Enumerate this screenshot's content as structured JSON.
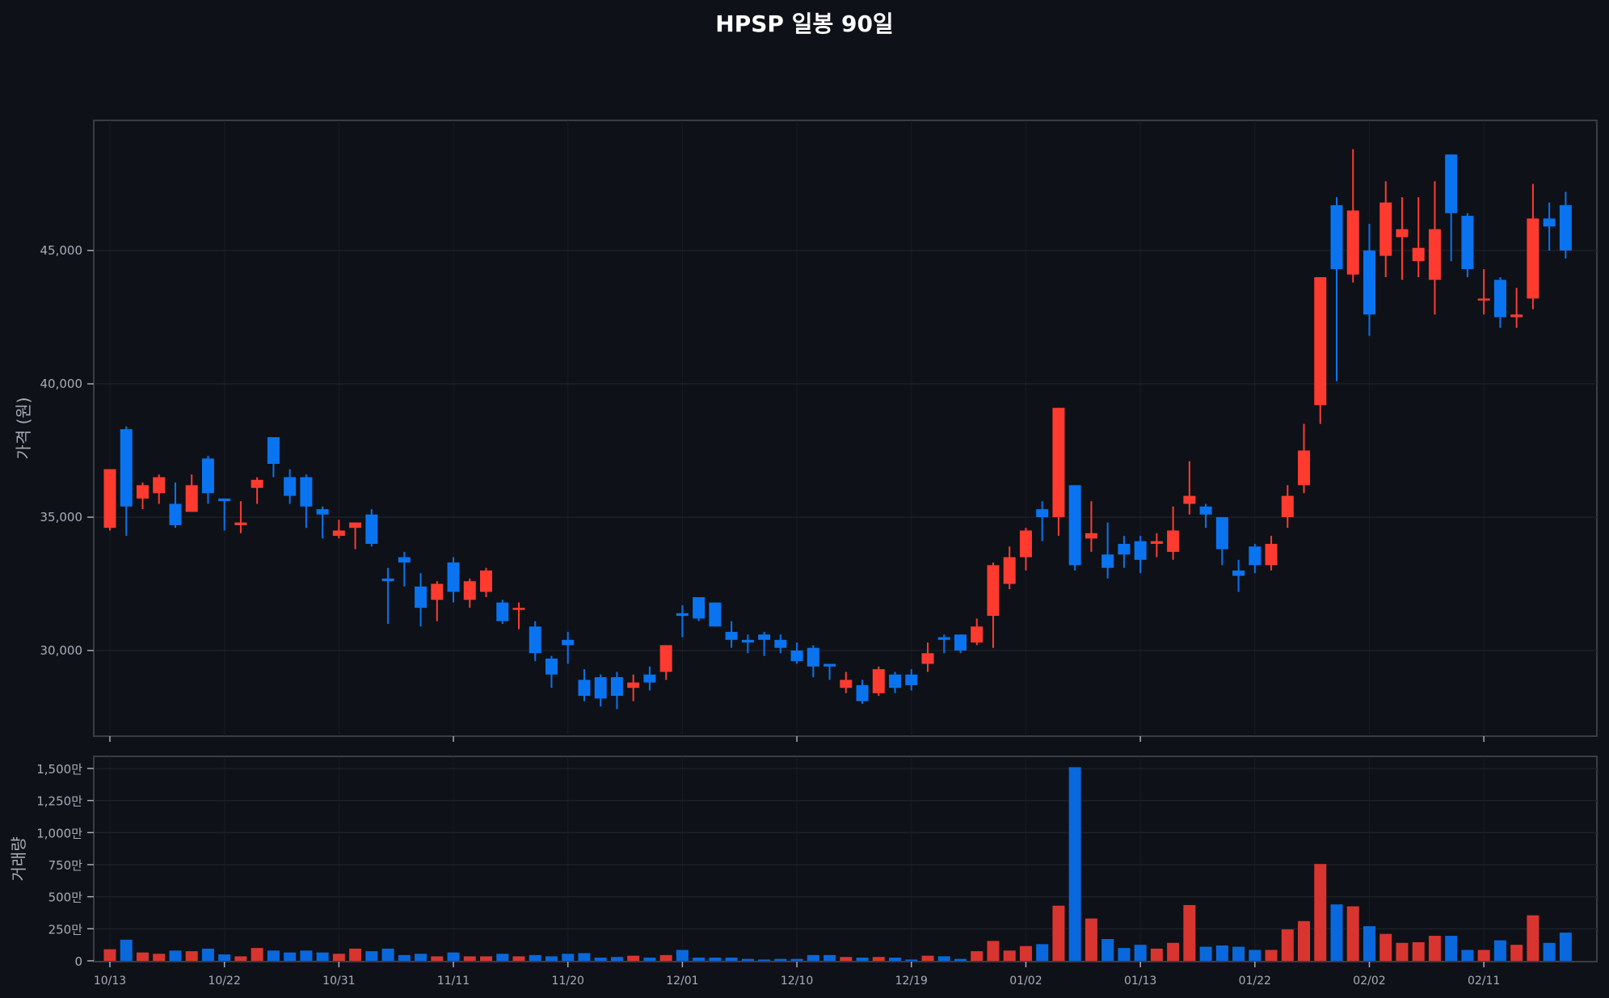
{
  "title": "HPSP 일봉 90일",
  "colors": {
    "background": "#0e1118",
    "frame": "#3a3d44",
    "grid": "#1e2129",
    "tick_text": "#a9adb5",
    "up": "#ff3b30",
    "down": "#0a74f0",
    "up_volume": "#d93530",
    "down_volume": "#0a68dd"
  },
  "chart_data": [
    {
      "type": "candlestick",
      "title": "HPSP 일봉 90일",
      "xlabel": "",
      "ylabel": "가격 (원)",
      "yticks": [
        30000,
        35000,
        40000,
        45000
      ],
      "ytick_labels": [
        "30,000",
        "35,000",
        "40,000",
        "45,000"
      ],
      "ylim": [
        26800,
        49600
      ],
      "grid": true,
      "x_tick_indices": [
        0,
        7,
        14,
        21,
        28,
        35,
        42,
        49,
        56,
        63,
        70,
        77,
        84
      ],
      "x_tick_labels": [
        "10/13",
        "10/22",
        "10/31",
        "11/11",
        "11/20",
        "12/01",
        "12/10",
        "12/19",
        "01/02",
        "01/13",
        "01/22",
        "02/02",
        "02/11"
      ],
      "ohlc": [
        [
          34600,
          36800,
          34500,
          36800
        ],
        [
          38300,
          38400,
          34300,
          35400
        ],
        [
          35700,
          36300,
          35300,
          36200
        ],
        [
          35900,
          36600,
          35500,
          36500
        ],
        [
          35500,
          36300,
          34600,
          34700
        ],
        [
          35200,
          36600,
          35200,
          36200
        ],
        [
          37200,
          37300,
          35500,
          35900
        ],
        [
          35700,
          35700,
          34500,
          35600
        ],
        [
          34700,
          35600,
          34400,
          34800
        ],
        [
          36100,
          36500,
          35500,
          36400
        ],
        [
          38000,
          38000,
          36500,
          37000
        ],
        [
          36500,
          36800,
          35500,
          35800
        ],
        [
          36500,
          36600,
          34600,
          35400
        ],
        [
          35300,
          35400,
          34200,
          35100
        ],
        [
          34300,
          34900,
          34200,
          34500
        ],
        [
          34600,
          34800,
          33800,
          34800
        ],
        [
          35100,
          35300,
          33900,
          34000
        ],
        [
          32700,
          33100,
          31000,
          32600
        ],
        [
          33500,
          33700,
          32400,
          33300
        ],
        [
          32400,
          32900,
          30900,
          31600
        ],
        [
          31900,
          32600,
          31100,
          32500
        ],
        [
          33300,
          33500,
          31800,
          32200
        ],
        [
          31900,
          32700,
          31600,
          32600
        ],
        [
          32200,
          33100,
          32000,
          33000
        ],
        [
          31800,
          31900,
          31000,
          31100
        ],
        [
          31600,
          31800,
          30800,
          31600
        ],
        [
          30900,
          31100,
          29600,
          29900
        ],
        [
          29700,
          29800,
          28600,
          29100
        ],
        [
          30400,
          30700,
          29500,
          30200
        ],
        [
          28900,
          29300,
          28100,
          28300
        ],
        [
          29000,
          29100,
          27900,
          28200
        ],
        [
          29000,
          29200,
          27800,
          28300
        ],
        [
          28600,
          29100,
          28100,
          28800
        ],
        [
          29100,
          29400,
          28500,
          28800
        ],
        [
          29200,
          30200,
          28900,
          30200
        ],
        [
          31400,
          31700,
          30500,
          31300
        ],
        [
          32000,
          32000,
          31100,
          31200
        ],
        [
          31800,
          31800,
          30900,
          30900
        ],
        [
          30700,
          31100,
          30100,
          30400
        ],
        [
          30400,
          30600,
          29900,
          30300
        ],
        [
          30600,
          30700,
          29800,
          30400
        ],
        [
          30400,
          30600,
          29900,
          30100
        ],
        [
          30000,
          30300,
          29500,
          29600
        ],
        [
          30100,
          30200,
          29000,
          29400
        ],
        [
          29500,
          29500,
          28900,
          29400
        ],
        [
          28600,
          29200,
          28400,
          28900
        ],
        [
          28700,
          28900,
          28000,
          28100
        ],
        [
          28400,
          29400,
          28300,
          29300
        ],
        [
          29100,
          29200,
          28400,
          28600
        ],
        [
          29100,
          29300,
          28500,
          28700
        ],
        [
          29500,
          30300,
          29200,
          29900
        ],
        [
          30500,
          30600,
          29900,
          30400
        ],
        [
          30600,
          30600,
          29900,
          30000
        ],
        [
          30300,
          31200,
          30200,
          30900
        ],
        [
          31300,
          33300,
          30100,
          33200
        ],
        [
          32500,
          33900,
          32300,
          33500
        ],
        [
          33500,
          34600,
          33000,
          34500
        ],
        [
          35300,
          35600,
          34100,
          35000
        ],
        [
          35000,
          39100,
          34300,
          39100
        ],
        [
          36200,
          36200,
          33000,
          33200
        ],
        [
          34200,
          35600,
          33700,
          34400
        ],
        [
          33600,
          34800,
          32700,
          33100
        ],
        [
          34000,
          34300,
          33100,
          33600
        ],
        [
          34100,
          34300,
          32900,
          33400
        ],
        [
          34000,
          34400,
          33500,
          34100
        ],
        [
          33700,
          35400,
          33400,
          34500
        ],
        [
          35500,
          37100,
          35100,
          35800
        ],
        [
          35400,
          35500,
          34600,
          35100
        ],
        [
          35000,
          35000,
          33200,
          33800
        ],
        [
          33000,
          33400,
          32200,
          32800
        ],
        [
          33900,
          34000,
          32900,
          33200
        ],
        [
          33200,
          34300,
          33000,
          34000
        ],
        [
          35000,
          36200,
          34600,
          35800
        ],
        [
          36200,
          38500,
          35900,
          37500
        ],
        [
          39200,
          44000,
          38500,
          44000
        ],
        [
          46700,
          47000,
          40100,
          44300
        ],
        [
          44100,
          48800,
          43800,
          46500
        ],
        [
          45000,
          46000,
          41800,
          42600
        ],
        [
          44800,
          47600,
          44000,
          46800
        ],
        [
          45500,
          47000,
          43900,
          45800
        ],
        [
          44600,
          47000,
          44000,
          45100
        ],
        [
          43900,
          47600,
          42600,
          45800
        ],
        [
          48600,
          48600,
          44600,
          46400
        ],
        [
          46300,
          46400,
          44000,
          44300
        ],
        [
          43200,
          44300,
          42600,
          43200
        ],
        [
          43900,
          44000,
          42100,
          42500
        ],
        [
          42500,
          43600,
          42100,
          42600
        ],
        [
          43200,
          47500,
          42800,
          46200
        ],
        [
          46200,
          46800,
          45000,
          45900
        ],
        [
          46700,
          47200,
          44700,
          45000
        ]
      ]
    },
    {
      "type": "bar",
      "title": "",
      "ylabel": "거래량",
      "unit": "만",
      "yticks": [
        0,
        250,
        500,
        750,
        1000,
        1250,
        1500
      ],
      "ytick_labels": [
        "0",
        "250만",
        "500만",
        "750만",
        "1,000만",
        "1,250만",
        "1,500만"
      ],
      "ylim": [
        0,
        1600
      ],
      "grid": true,
      "volume": [
        90,
        165,
        65,
        55,
        80,
        75,
        95,
        50,
        35,
        100,
        80,
        65,
        80,
        65,
        55,
        95,
        75,
        95,
        45,
        55,
        35,
        65,
        35,
        35,
        55,
        35,
        45,
        35,
        55,
        60,
        25,
        30,
        40,
        25,
        45,
        85,
        25,
        25,
        25,
        15,
        10,
        15,
        15,
        45,
        45,
        30,
        25,
        30,
        25,
        10,
        40,
        35,
        15,
        75,
        155,
        80,
        115,
        130,
        430,
        1510,
        330,
        170,
        100,
        125,
        95,
        140,
        435,
        110,
        120,
        110,
        85,
        85,
        245,
        310,
        755,
        440,
        425,
        270,
        210,
        140,
        145,
        195,
        195,
        85,
        85,
        160,
        125,
        355,
        140,
        220
      ]
    }
  ]
}
